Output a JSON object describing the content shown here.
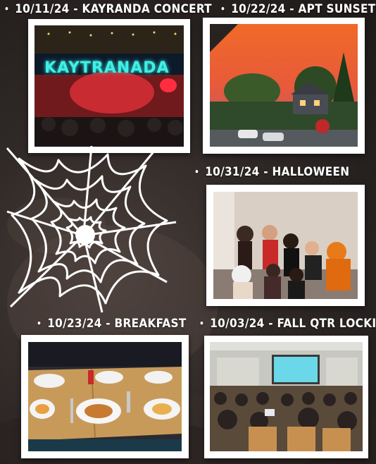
{
  "entries": [
    {
      "date": "10/11/24",
      "event": "KAYRANDA CONCERT",
      "sign_text": "KAYTRANADA"
    },
    {
      "date": "10/22/24",
      "event": "APT SUNSETS"
    },
    {
      "date": "10/31/24",
      "event": "HALLOWEEN"
    },
    {
      "date": "10/23/24",
      "event": "BREAKFAST"
    },
    {
      "date": "10/03/24",
      "event": "FALL QTR LOCKIN"
    }
  ],
  "separator": " - ",
  "bullet": "•",
  "colors": {
    "background": "#2e2826",
    "caption_text": "#ffffff",
    "frame": "#ffffff",
    "neon_sign": "#3ef0e6"
  },
  "icons": {
    "spiderweb": "spiderweb-icon",
    "bullet": "bullet-icon"
  }
}
